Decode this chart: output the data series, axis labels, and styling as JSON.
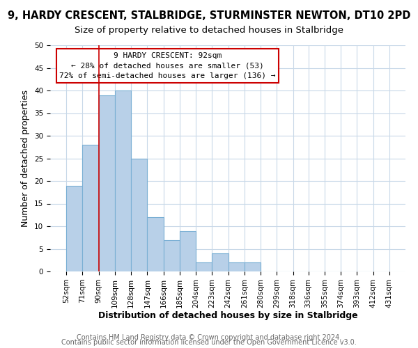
{
  "title_line1": "9, HARDY CRESCENT, STALBRIDGE, STURMINSTER NEWTON, DT10 2PD",
  "title_line2": "Size of property relative to detached houses in Stalbridge",
  "xlabel": "Distribution of detached houses by size in Stalbridge",
  "ylabel": "Number of detached properties",
  "bin_edges": [
    52,
    71,
    90,
    109,
    128,
    147,
    166,
    185,
    204,
    223,
    242,
    261,
    280,
    299,
    318,
    336,
    355,
    374,
    393,
    412,
    431
  ],
  "bin_labels": [
    "52sqm",
    "71sqm",
    "90sqm",
    "109sqm",
    "128sqm",
    "147sqm",
    "166sqm",
    "185sqm",
    "204sqm",
    "223sqm",
    "242sqm",
    "261sqm",
    "280sqm",
    "299sqm",
    "318sqm",
    "336sqm",
    "355sqm",
    "374sqm",
    "393sqm",
    "412sqm",
    "431sqm"
  ],
  "bar_heights": [
    19,
    28,
    39,
    40,
    25,
    12,
    7,
    9,
    2,
    4,
    2,
    2,
    0,
    0,
    0,
    0,
    0,
    0,
    0,
    0
  ],
  "bar_color": "#b8d0e8",
  "bar_edge_color": "#7aafd4",
  "reference_line_x": 90,
  "ylim": [
    0,
    50
  ],
  "yticks": [
    0,
    5,
    10,
    15,
    20,
    25,
    30,
    35,
    40,
    45,
    50
  ],
  "annotation_text_line1": "9 HARDY CRESCENT: 92sqm",
  "annotation_text_line2": "← 28% of detached houses are smaller (53)",
  "annotation_text_line3": "72% of semi-detached houses are larger (136) →",
  "ref_line_color": "#cc0000",
  "footer_line1": "Contains HM Land Registry data © Crown copyright and database right 2024.",
  "footer_line2": "Contains public sector information licensed under the Open Government Licence v3.0.",
  "background_color": "#ffffff",
  "grid_color": "#c8d8e8",
  "title_fontsize": 10.5,
  "subtitle_fontsize": 9.5,
  "axis_label_fontsize": 9,
  "tick_fontsize": 7.5,
  "annot_fontsize": 8,
  "footer_fontsize": 7
}
